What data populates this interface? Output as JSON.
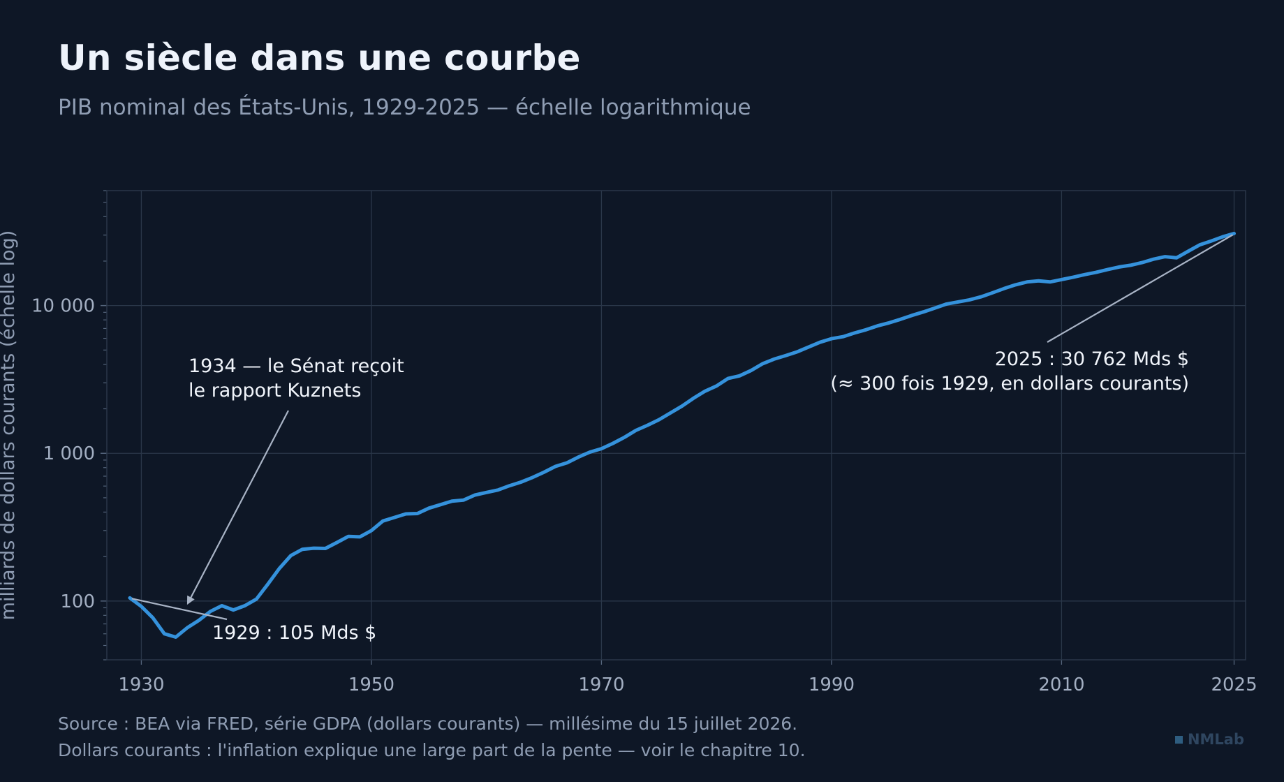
{
  "title": "Un siècle dans une courbe",
  "subtitle": "PIB nominal des États-Unis, 1929-2025 — échelle logarithmique",
  "footnotes": {
    "line1": "Source : BEA via FRED, série GDPA (dollars courants) — millésime du 15 juillet 2026.",
    "line2": "Dollars courants : l'inflation explique une large part de la pente — voir le chapitre 10."
  },
  "brand": "NMLab",
  "colors": {
    "background": "#0e1726",
    "line": "#3592dc",
    "grid": "#2a3749",
    "annotation_arrow": "#a9b4c6"
  },
  "chart_data": {
    "type": "line",
    "ylabel": "milliards de dollars courants (échelle log)",
    "xlabel": "",
    "log_y": true,
    "xlim": [
      1927,
      2026
    ],
    "ylim": [
      40,
      60000
    ],
    "x_ticks": [
      1930,
      1950,
      1970,
      1990,
      2010,
      2025
    ],
    "y_ticks": [
      {
        "value": 100,
        "label": "100"
      },
      {
        "value": 1000,
        "label": "1 000"
      },
      {
        "value": 10000,
        "label": "10 000"
      }
    ],
    "grid": true,
    "series": [
      {
        "x": [
          1929,
          1930,
          1931,
          1932,
          1933,
          1934,
          1935,
          1936,
          1937,
          1938,
          1939,
          1940,
          1941,
          1942,
          1943,
          1944,
          1945,
          1946,
          1947,
          1948,
          1949,
          1950,
          1951,
          1952,
          1953,
          1954,
          1955,
          1956,
          1957,
          1958,
          1959,
          1960,
          1961,
          1962,
          1963,
          1964,
          1965,
          1966,
          1967,
          1968,
          1969,
          1970,
          1971,
          1972,
          1973,
          1974,
          1975,
          1976,
          1977,
          1978,
          1979,
          1980,
          1981,
          1982,
          1983,
          1984,
          1985,
          1986,
          1987,
          1988,
          1989,
          1990,
          1991,
          1992,
          1993,
          1994,
          1995,
          1996,
          1997,
          1998,
          1999,
          2000,
          2001,
          2002,
          2003,
          2004,
          2005,
          2006,
          2007,
          2008,
          2009,
          2010,
          2011,
          2012,
          2013,
          2014,
          2015,
          2016,
          2017,
          2018,
          2019,
          2020,
          2021,
          2022,
          2023,
          2024,
          2025
        ],
        "y": [
          105,
          92,
          77,
          60,
          57,
          66,
          74,
          85,
          93,
          87,
          93,
          103,
          130,
          166,
          203,
          224,
          228,
          227,
          249,
          274,
          272,
          300,
          348,
          368,
          389,
          391,
          425,
          449,
          474,
          482,
          522,
          543,
          564,
          603,
          638,
          686,
          744,
          815,
          862,
          943,
          1019,
          1075,
          1167,
          1283,
          1429,
          1548,
          1689,
          1877,
          2086,
          2357,
          2632,
          2857,
          3207,
          3343,
          3634,
          4037,
          4339,
          4580,
          4855,
          5236,
          5642,
          5963,
          6158,
          6520,
          6859,
          7287,
          7640,
          8073,
          8578,
          9063,
          9631,
          10251,
          10582,
          10936,
          11458,
          12214,
          13037,
          13815,
          14452,
          14713,
          14449,
          14992,
          15543,
          16197,
          16785,
          17527,
          18238,
          18745,
          19543,
          20612,
          21433,
          21061,
          23316,
          25744,
          27361,
          29184,
          30762
        ]
      }
    ],
    "annotations": [
      {
        "text": "1929 : 105 Mds $",
        "x": 1929,
        "y": 105
      },
      {
        "lines": [
          "1934 — le Sénat reçoit",
          "le rapport Kuznets"
        ],
        "x": 1934,
        "y": 89
      },
      {
        "lines": [
          "2025 : 30 762 Mds $",
          "(≈ 300 fois 1929, en dollars courants)"
        ],
        "x": 2025,
        "y": 30762
      }
    ]
  }
}
